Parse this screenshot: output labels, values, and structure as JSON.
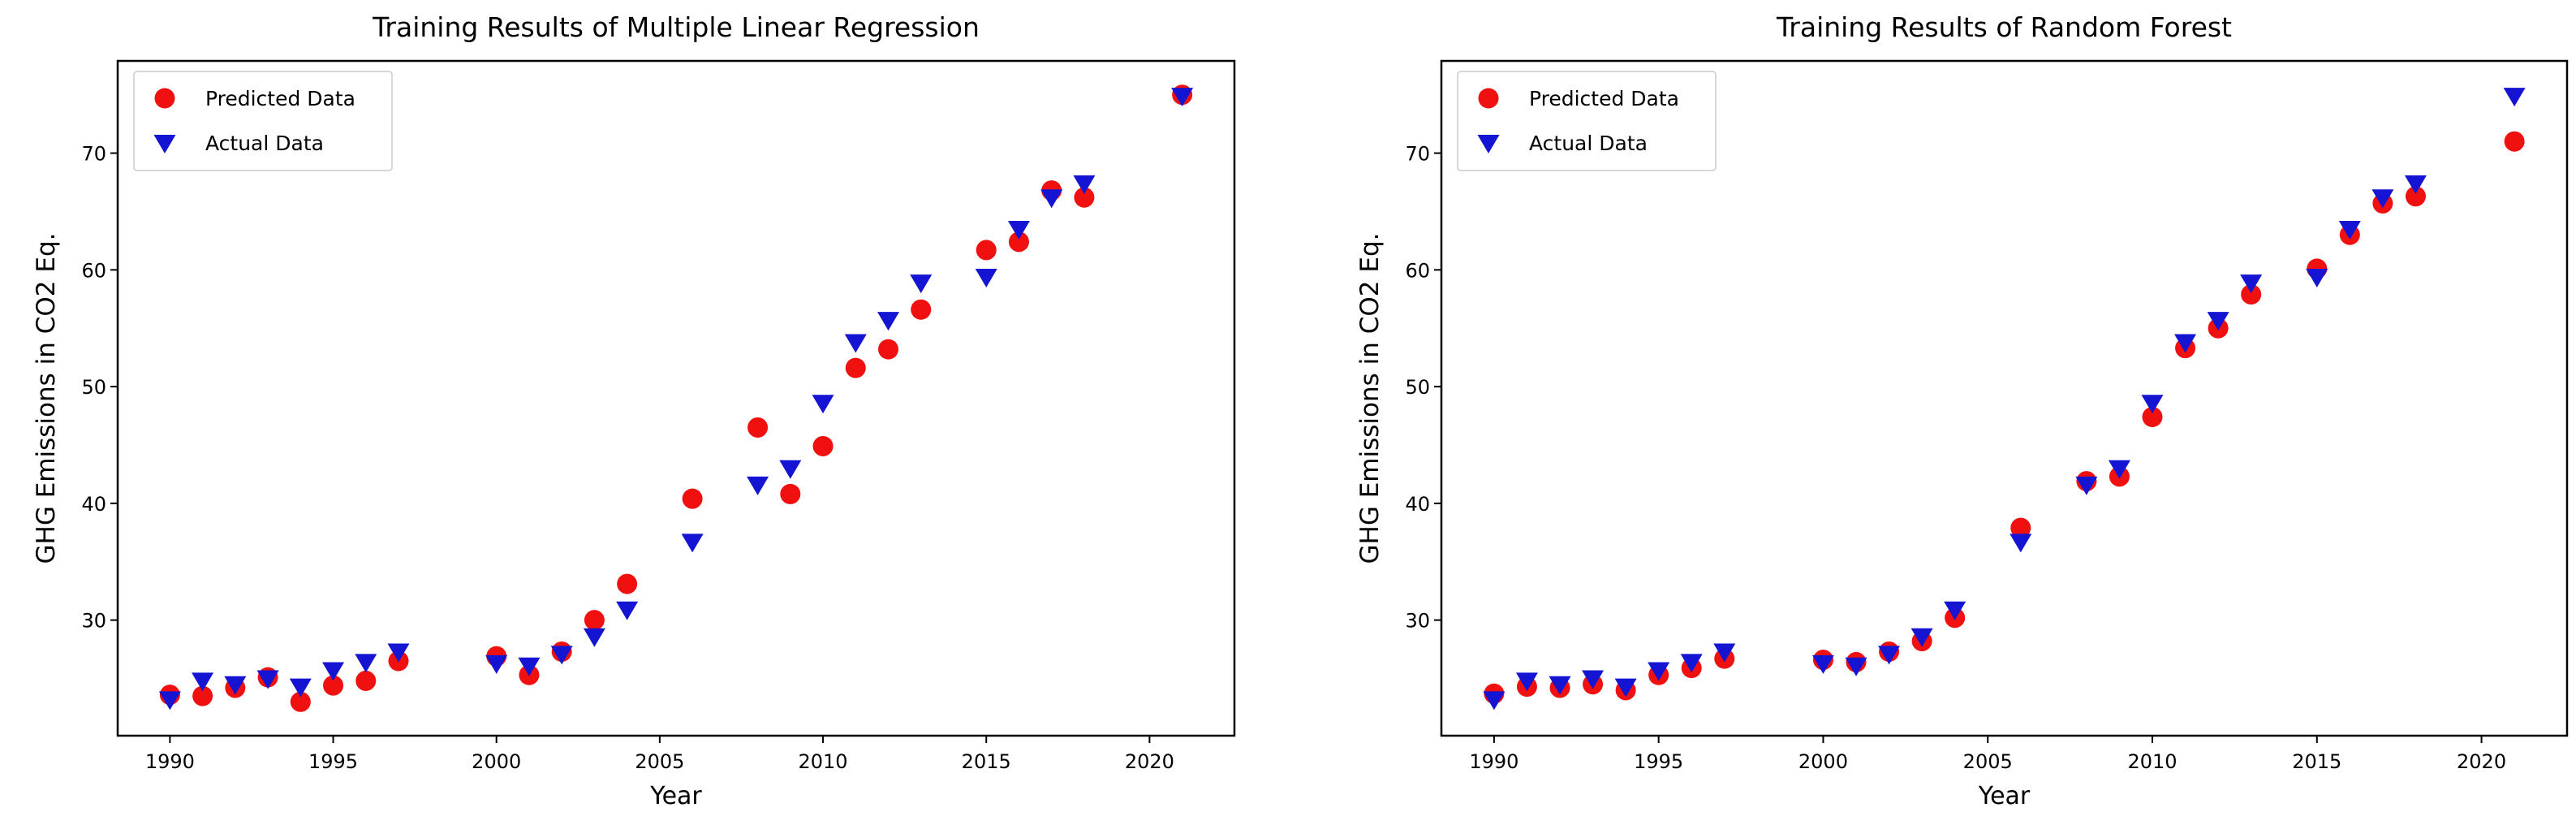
{
  "figure": {
    "background": "#ffffff",
    "text_color": "#000000",
    "axis_color": "#000000"
  },
  "chart_data": [
    {
      "type": "scatter",
      "title": "Training Results of Multiple Linear Regression",
      "xlabel": "Year",
      "ylabel": "GHG Emissions in CO2 Eq.",
      "xlim": [
        1988.4,
        2022.6
      ],
      "ylim": [
        20.1,
        77.9
      ],
      "xticks": [
        1990,
        1995,
        2000,
        2005,
        2010,
        2015,
        2020
      ],
      "yticks": [
        30,
        40,
        50,
        60,
        70
      ],
      "grid": false,
      "legend_position": "upper-left",
      "x": [
        1990,
        1991,
        1992,
        1993,
        1994,
        1995,
        1996,
        1997,
        2000,
        2001,
        2002,
        2003,
        2004,
        2006,
        2008,
        2009,
        2010,
        2011,
        2012,
        2013,
        2015,
        2016,
        2017,
        2018,
        2021
      ],
      "series": [
        {
          "name": "Predicted Data",
          "marker": "circle",
          "color": "#f01010",
          "values": [
            23.6,
            23.5,
            24.2,
            25.1,
            23.0,
            24.4,
            24.8,
            26.5,
            26.9,
            25.3,
            27.3,
            30.0,
            33.1,
            40.4,
            46.5,
            40.8,
            44.9,
            51.6,
            53.2,
            56.6,
            61.7,
            62.4,
            66.8,
            66.2,
            75.0
          ]
        },
        {
          "name": "Actual Data",
          "marker": "triangle-down",
          "color": "#1414d2",
          "values": [
            23.2,
            24.8,
            24.5,
            25.0,
            24.3,
            25.7,
            26.4,
            27.3,
            26.3,
            26.1,
            27.1,
            28.6,
            30.9,
            36.7,
            41.6,
            43.0,
            48.6,
            53.8,
            55.7,
            58.9,
            59.4,
            63.5,
            66.2,
            67.4,
            74.9
          ]
        }
      ]
    },
    {
      "type": "scatter",
      "title": "Training Results of Random Forest",
      "xlabel": "Year",
      "ylabel": "GHG Emissions in CO2 Eq.",
      "xlim": [
        1988.4,
        2022.6
      ],
      "ylim": [
        20.1,
        77.9
      ],
      "xticks": [
        1990,
        1995,
        2000,
        2005,
        2010,
        2015,
        2020
      ],
      "yticks": [
        30,
        40,
        50,
        60,
        70
      ],
      "grid": false,
      "legend_position": "upper-left",
      "x": [
        1990,
        1991,
        1992,
        1993,
        1994,
        1995,
        1996,
        1997,
        2000,
        2001,
        2002,
        2003,
        2004,
        2006,
        2008,
        2009,
        2010,
        2011,
        2012,
        2013,
        2015,
        2016,
        2017,
        2018,
        2021
      ],
      "series": [
        {
          "name": "Predicted Data",
          "marker": "circle",
          "color": "#f01010",
          "values": [
            23.7,
            24.3,
            24.2,
            24.5,
            24.0,
            25.3,
            25.9,
            26.7,
            26.6,
            26.4,
            27.3,
            28.2,
            30.2,
            37.9,
            41.9,
            42.3,
            47.4,
            53.3,
            55.0,
            57.9,
            60.1,
            63.0,
            65.7,
            66.3,
            71.0
          ]
        },
        {
          "name": "Actual Data",
          "marker": "triangle-down",
          "color": "#1414d2",
          "values": [
            23.2,
            24.8,
            24.5,
            25.0,
            24.3,
            25.7,
            26.4,
            27.3,
            26.3,
            26.1,
            27.1,
            28.6,
            30.9,
            36.7,
            41.6,
            43.0,
            48.6,
            53.8,
            55.7,
            58.9,
            59.4,
            63.5,
            66.2,
            67.4,
            74.9
          ]
        }
      ]
    }
  ],
  "legend": {
    "predicted_label": "Predicted Data",
    "actual_label": "Actual Data"
  }
}
